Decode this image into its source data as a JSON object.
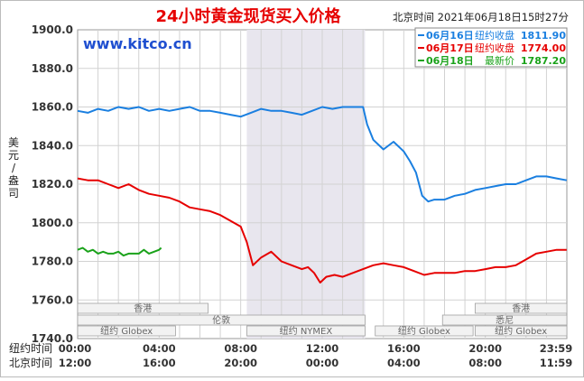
{
  "chart_data": {
    "type": "line",
    "title": "24小时黄金现货买入价格",
    "timestamp": "北京时间  2021年06月18日15时27分",
    "watermark": "www.kitco.cn",
    "ylabel": "美元/盎司",
    "ylim": [
      1740,
      1900
    ],
    "yticks": [
      "1900.0",
      "1880.0",
      "1860.0",
      "1840.0",
      "1820.0",
      "1800.0",
      "1780.0",
      "1760.0",
      "1740.0"
    ],
    "grid": true,
    "legend_position": "top-right",
    "legend": [
      {
        "date": "06月16日",
        "label": "纽约收盘",
        "value": "1811.90",
        "color": "#1a7fe0"
      },
      {
        "date": "06月17日",
        "label": "纽约收盘",
        "value": "1774.00",
        "color": "#e60000"
      },
      {
        "date": "06月18日",
        "label": "最新价",
        "value": "1787.20",
        "color": "#1aa21a"
      }
    ],
    "x_rows": [
      {
        "label": "纽约时间",
        "ticks": [
          "00:00",
          "04:00",
          "08:00",
          "12:00",
          "16:00",
          "20:00",
          "23:59"
        ]
      },
      {
        "label": "北京时间",
        "ticks": [
          "12:00",
          "16:00",
          "20:00",
          "00:00",
          "04:00",
          "08:00",
          "11:59"
        ]
      }
    ],
    "shaded_session": "纽约 NYMEX",
    "session_labels": {
      "hongkong_1": "香港",
      "newyork_globex_1": "纽约 Globex",
      "london": "伦敦",
      "newyork_nymex": "纽约 NYMEX",
      "newyork_globex_2": "纽约 Globex",
      "hongkong_2": "香港",
      "sydney": "悉尼",
      "newyork_globex_3": "纽约 Globex"
    },
    "x_unit": "hours from 00:00 New York time",
    "series": [
      {
        "name": "06月16日",
        "color": "#1a7fe0",
        "points": [
          [
            0,
            1858
          ],
          [
            0.5,
            1857
          ],
          [
            1,
            1859
          ],
          [
            1.5,
            1858
          ],
          [
            2,
            1860
          ],
          [
            2.5,
            1859
          ],
          [
            3,
            1860
          ],
          [
            3.5,
            1858
          ],
          [
            4,
            1859
          ],
          [
            4.5,
            1858
          ],
          [
            5,
            1859
          ],
          [
            5.5,
            1860
          ],
          [
            6,
            1858
          ],
          [
            6.5,
            1858
          ],
          [
            7,
            1857
          ],
          [
            7.5,
            1856
          ],
          [
            8,
            1855
          ],
          [
            8.5,
            1857
          ],
          [
            9,
            1859
          ],
          [
            9.5,
            1858
          ],
          [
            10,
            1858
          ],
          [
            10.5,
            1857
          ],
          [
            11,
            1856
          ],
          [
            11.5,
            1858
          ],
          [
            12,
            1860
          ],
          [
            12.5,
            1859
          ],
          [
            13,
            1860
          ],
          [
            13.5,
            1860
          ],
          [
            14,
            1860
          ],
          [
            14.2,
            1851
          ],
          [
            14.5,
            1843
          ],
          [
            15,
            1838
          ],
          [
            15.5,
            1842
          ],
          [
            16,
            1837
          ],
          [
            16.3,
            1832
          ],
          [
            16.6,
            1826
          ],
          [
            16.9,
            1814
          ],
          [
            17.2,
            1811
          ],
          [
            17.5,
            1812
          ],
          [
            18,
            1812
          ],
          [
            18.5,
            1814
          ],
          [
            19,
            1815
          ],
          [
            19.5,
            1817
          ],
          [
            20,
            1818
          ],
          [
            20.5,
            1819
          ],
          [
            21,
            1820
          ],
          [
            21.5,
            1820
          ],
          [
            22,
            1822
          ],
          [
            22.5,
            1824
          ],
          [
            23,
            1824
          ],
          [
            23.5,
            1823
          ],
          [
            23.99,
            1822
          ]
        ]
      },
      {
        "name": "06月17日",
        "color": "#e60000",
        "points": [
          [
            0,
            1823
          ],
          [
            0.5,
            1822
          ],
          [
            1,
            1822
          ],
          [
            1.5,
            1820
          ],
          [
            2,
            1818
          ],
          [
            2.5,
            1820
          ],
          [
            3,
            1817
          ],
          [
            3.5,
            1815
          ],
          [
            4,
            1814
          ],
          [
            4.5,
            1813
          ],
          [
            5,
            1811
          ],
          [
            5.5,
            1808
          ],
          [
            6,
            1807
          ],
          [
            6.5,
            1806
          ],
          [
            7,
            1804
          ],
          [
            7.5,
            1801
          ],
          [
            8,
            1798
          ],
          [
            8.3,
            1790
          ],
          [
            8.6,
            1778
          ],
          [
            9,
            1782
          ],
          [
            9.5,
            1785
          ],
          [
            10,
            1780
          ],
          [
            10.5,
            1778
          ],
          [
            11,
            1776
          ],
          [
            11.3,
            1777
          ],
          [
            11.6,
            1774
          ],
          [
            11.9,
            1769
          ],
          [
            12.2,
            1772
          ],
          [
            12.6,
            1773
          ],
          [
            13,
            1772
          ],
          [
            13.5,
            1774
          ],
          [
            14,
            1776
          ],
          [
            14.5,
            1778
          ],
          [
            15,
            1779
          ],
          [
            15.5,
            1778
          ],
          [
            16,
            1777
          ],
          [
            16.5,
            1775
          ],
          [
            17,
            1773
          ],
          [
            17.5,
            1774
          ],
          [
            18,
            1774
          ],
          [
            18.5,
            1774
          ],
          [
            19,
            1775
          ],
          [
            19.5,
            1775
          ],
          [
            20,
            1776
          ],
          [
            20.5,
            1777
          ],
          [
            21,
            1777
          ],
          [
            21.5,
            1778
          ],
          [
            22,
            1781
          ],
          [
            22.5,
            1784
          ],
          [
            23,
            1785
          ],
          [
            23.5,
            1786
          ],
          [
            23.99,
            1786
          ]
        ]
      },
      {
        "name": "06月18日",
        "color": "#1aa21a",
        "points": [
          [
            0,
            1786
          ],
          [
            0.25,
            1787
          ],
          [
            0.5,
            1785
          ],
          [
            0.75,
            1786
          ],
          [
            1,
            1784
          ],
          [
            1.25,
            1785
          ],
          [
            1.5,
            1784
          ],
          [
            1.75,
            1784
          ],
          [
            2,
            1785
          ],
          [
            2.25,
            1783
          ],
          [
            2.5,
            1784
          ],
          [
            2.75,
            1784
          ],
          [
            3,
            1784
          ],
          [
            3.25,
            1786
          ],
          [
            3.5,
            1784
          ],
          [
            3.75,
            1785
          ],
          [
            4,
            1786
          ],
          [
            4.1,
            1787
          ]
        ]
      }
    ]
  }
}
